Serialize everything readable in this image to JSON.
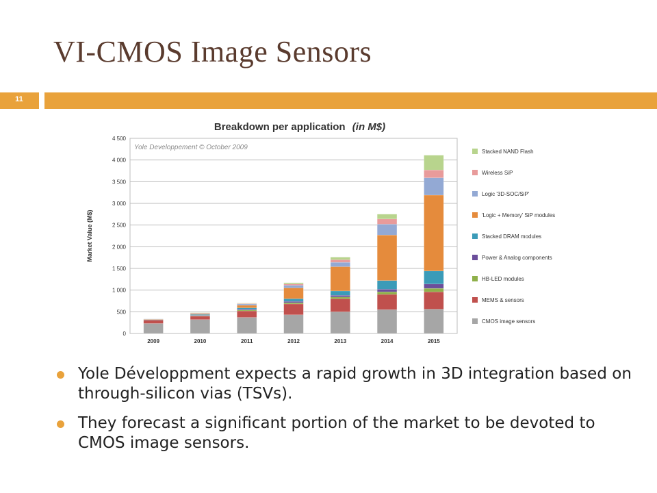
{
  "slide": {
    "title": "VI-CMOS Image Sensors",
    "number": "11",
    "accent_color": "#e9a23b",
    "title_color": "#5a3b2e"
  },
  "bullets": [
    {
      "text": "Yole Développment expects a rapid growth in 3D integration based on through-silicon vias (TSVs)."
    },
    {
      "text": "They forecast a significant portion of the market to be devoted to CMOS image sensors."
    }
  ],
  "chart_data": {
    "type": "bar",
    "stacked": true,
    "title": "Breakdown per application",
    "title_suffix": "(in M$)",
    "watermark": "Yole Developpement © October 2009",
    "ylabel": "Market Value (M$)",
    "xlabel": "",
    "ylim": [
      0,
      4500
    ],
    "yticks": [
      0,
      500,
      1000,
      1500,
      2000,
      2500,
      3000,
      3500,
      4000,
      4500
    ],
    "ytick_labels": [
      "0",
      "500",
      "1 000",
      "1 500",
      "2 000",
      "2 500",
      "3 000",
      "3 500",
      "4 000",
      "4 500"
    ],
    "grid": true,
    "legend_position": "right",
    "categories": [
      "2009",
      "2010",
      "2011",
      "2012",
      "2013",
      "2014",
      "2015"
    ],
    "series": [
      {
        "name": "CMOS image sensors",
        "color": "#a6a6a6",
        "values": [
          230,
          320,
          370,
          430,
          500,
          550,
          560
        ]
      },
      {
        "name": "MEMS & sensors",
        "color": "#c0504d",
        "values": [
          80,
          80,
          150,
          250,
          300,
          350,
          400
        ]
      },
      {
        "name": "HB-LED modules",
        "color": "#8fb04a",
        "values": [
          0,
          10,
          20,
          30,
          40,
          60,
          80
        ]
      },
      {
        "name": "Power & Analog components",
        "color": "#6b4e9b",
        "values": [
          0,
          10,
          20,
          30,
          40,
          60,
          100
        ]
      },
      {
        "name": "Stacked DRAM modules",
        "color": "#3b9bb8",
        "values": [
          10,
          20,
          30,
          60,
          100,
          200,
          300
        ]
      },
      {
        "name": "'Logic + Memory' SiP modules",
        "color": "#e58b3c",
        "values": [
          10,
          20,
          60,
          250,
          560,
          1050,
          1750
        ]
      },
      {
        "name": "Logic '3D-SOC/SiP'",
        "color": "#93a9d4",
        "values": [
          5,
          10,
          30,
          60,
          100,
          250,
          400
        ]
      },
      {
        "name": "Wireless SiP",
        "color": "#e89b9b",
        "values": [
          0,
          5,
          10,
          30,
          60,
          120,
          180
        ]
      },
      {
        "name": "Stacked NAND Flash",
        "color": "#b8d48d",
        "values": [
          0,
          5,
          10,
          30,
          60,
          110,
          340
        ]
      }
    ]
  }
}
